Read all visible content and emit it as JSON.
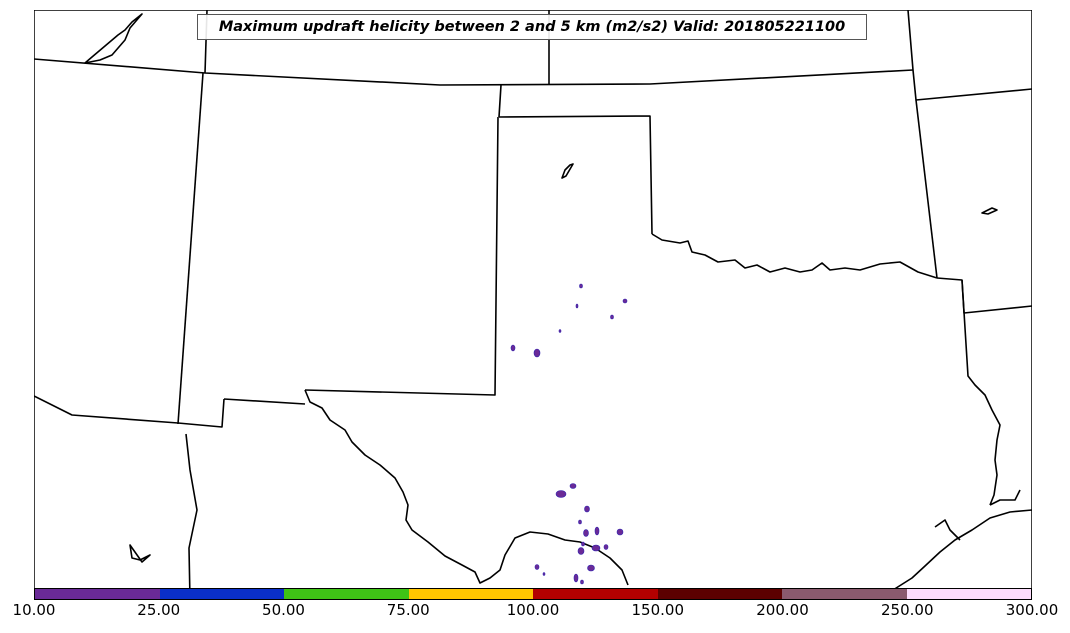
{
  "map": {
    "title": "Maximum updraft helicity between 2 and 5 km (m2/s2) Valid: 201805221100"
  },
  "colorbar": {
    "tick_labels": [
      "10.00",
      "25.00",
      "50.00",
      "75.00",
      "100.00",
      "150.00",
      "200.00",
      "250.00",
      "300.00"
    ],
    "colors": [
      "#6a2a97",
      "#0a2fc8",
      "#3fc416",
      "#ffc600",
      "#b30000",
      "#5c0000",
      "#8a5a6e",
      "#fcdcfc"
    ]
  },
  "field_color": "#6a2a97"
}
